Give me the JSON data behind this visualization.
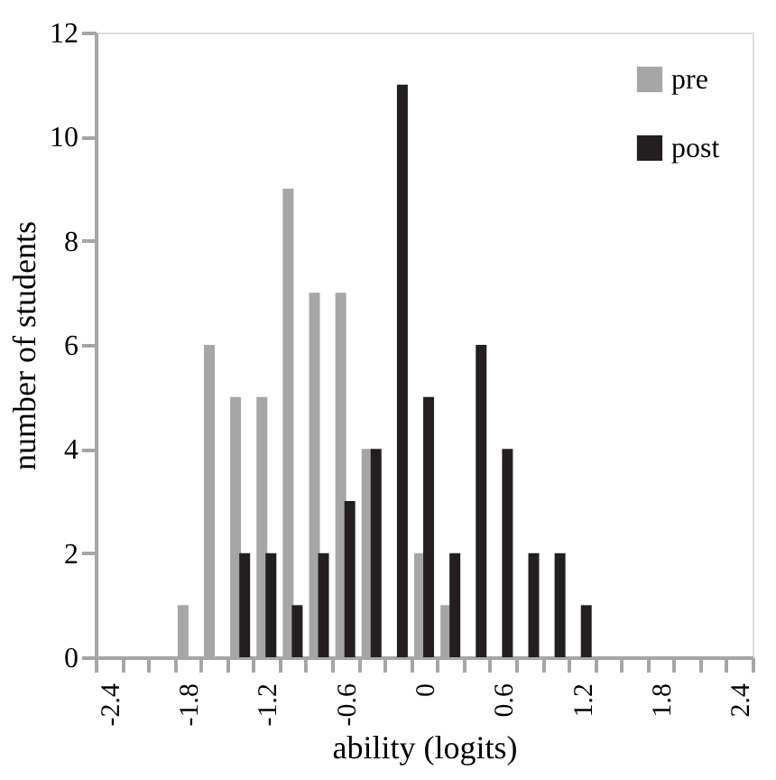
{
  "chart_data": {
    "type": "bar",
    "xlabel": "ability (logits)",
    "ylabel": "number of students",
    "categories": [
      "-2.4",
      null,
      null,
      "-1.8",
      null,
      null,
      "-1.2",
      null,
      null,
      "-0.6",
      null,
      null,
      "0",
      null,
      null,
      "0.6",
      null,
      null,
      "1.2",
      null,
      null,
      "1.8",
      null,
      null,
      "2.4"
    ],
    "series": [
      {
        "name": "pre",
        "color": "#a6a6a6",
        "values": [
          null,
          null,
          null,
          1,
          6,
          5,
          5,
          9,
          7,
          7,
          4,
          null,
          2,
          1,
          null,
          null,
          null,
          null,
          null,
          null,
          null,
          null,
          null,
          null,
          null
        ]
      },
      {
        "name": "post",
        "color": "#231f20",
        "values": [
          null,
          null,
          null,
          null,
          null,
          2,
          2,
          1,
          2,
          3,
          4,
          11,
          5,
          2,
          6,
          4,
          2,
          2,
          1,
          null,
          null,
          null,
          null,
          null,
          null
        ]
      }
    ],
    "ylim": [
      0,
      12
    ],
    "yticks": [
      0,
      2,
      4,
      6,
      8,
      10,
      12
    ],
    "grid": false,
    "legend": "top right"
  }
}
